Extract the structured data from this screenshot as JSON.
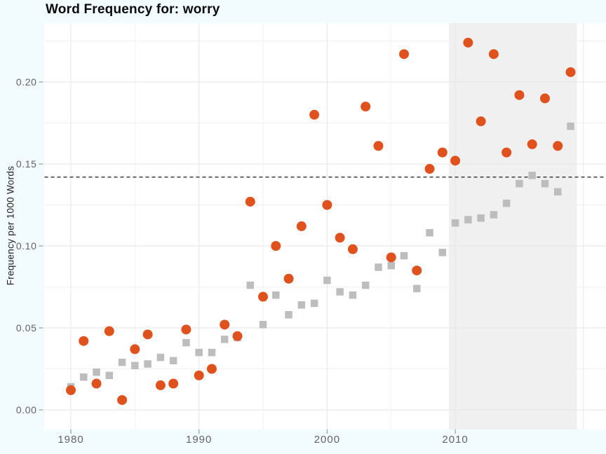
{
  "title": "Word Frequency for: worry",
  "y_axis_title": "Frequency per 1000 Words",
  "chart_data": {
    "type": "scatter",
    "title": "Word Frequency for: worry",
    "xlabel": "",
    "ylabel": "Frequency per 1000 Words",
    "x": [
      1980,
      1981,
      1982,
      1983,
      1984,
      1985,
      1986,
      1987,
      1988,
      1989,
      1990,
      1991,
      1992,
      1993,
      1994,
      1995,
      1996,
      1997,
      1998,
      1999,
      2000,
      2001,
      2002,
      2003,
      2004,
      2005,
      2006,
      2007,
      2008,
      2009,
      2010,
      2011,
      2012,
      2013,
      2014,
      2015,
      2016,
      2017,
      2018,
      2019
    ],
    "series": [
      {
        "name": "gray-squares",
        "marker": "square",
        "color": "#bdbdbd",
        "size": 10.5,
        "values": [
          0.014,
          0.02,
          0.023,
          0.021,
          0.029,
          0.027,
          0.028,
          0.032,
          0.03,
          0.041,
          0.035,
          0.035,
          0.043,
          0.044,
          0.076,
          0.052,
          0.07,
          0.058,
          0.064,
          0.065,
          0.079,
          0.072,
          0.07,
          0.076,
          0.087,
          0.088,
          0.094,
          0.074,
          0.108,
          0.096,
          0.114,
          0.116,
          0.117,
          0.119,
          0.126,
          0.138,
          0.143,
          0.138,
          0.133,
          0.173
        ]
      },
      {
        "name": "orange-circles",
        "marker": "circle",
        "color": "#e0521d",
        "size": 14,
        "values": [
          0.012,
          0.042,
          0.016,
          0.048,
          0.006,
          0.037,
          0.046,
          0.015,
          0.016,
          0.049,
          0.021,
          0.025,
          0.052,
          0.045,
          0.127,
          0.069,
          0.1,
          0.08,
          0.112,
          0.18,
          0.125,
          0.105,
          0.098,
          0.185,
          0.161,
          0.093,
          0.217,
          0.085,
          0.147,
          0.157,
          0.152,
          0.224,
          0.176,
          0.217,
          0.157,
          0.192,
          0.162,
          0.19,
          0.161,
          0.206
        ]
      }
    ],
    "reference_line": {
      "value": 0.142,
      "style": "dashed",
      "color": "#3c3c3c"
    },
    "shaded_region": {
      "x_start": 2009.5,
      "x_end": 2019.5,
      "color": "rgba(128,128,128,0.12)"
    },
    "axes": {
      "grid": true,
      "legend": "none",
      "x": {
        "tick_labels": [
          "1980",
          "1990",
          "2000",
          "2010"
        ],
        "tick_values": [
          1980,
          1990,
          2000,
          2010
        ],
        "grid_major": [
          1980,
          1990,
          2000,
          2010,
          2020
        ],
        "grid_minor": [
          1985,
          1995,
          2005,
          2015
        ],
        "range": [
          1977.9,
          2021.8
        ]
      },
      "y": {
        "tick_labels": [
          "0.00",
          "0.05",
          "0.10",
          "0.15",
          "0.20"
        ],
        "tick_values": [
          0,
          0.05,
          0.1,
          0.15,
          0.2
        ],
        "grid_major": [
          0,
          0.05,
          0.1,
          0.15,
          0.2
        ],
        "grid_minor": [
          0.025,
          0.075,
          0.125,
          0.175,
          0.225
        ],
        "range": [
          -0.012,
          0.236
        ]
      }
    }
  },
  "colors": {
    "background": "#f2fbfd",
    "panel": "#ffffff",
    "grid_major": "#e6e6e6",
    "grid_minor": "#f1f1f1",
    "tick_mark": "#9b9b9b",
    "tick_text": "#636363",
    "title_text": "#0b0b0b",
    "axis_title_text": "#242424"
  }
}
